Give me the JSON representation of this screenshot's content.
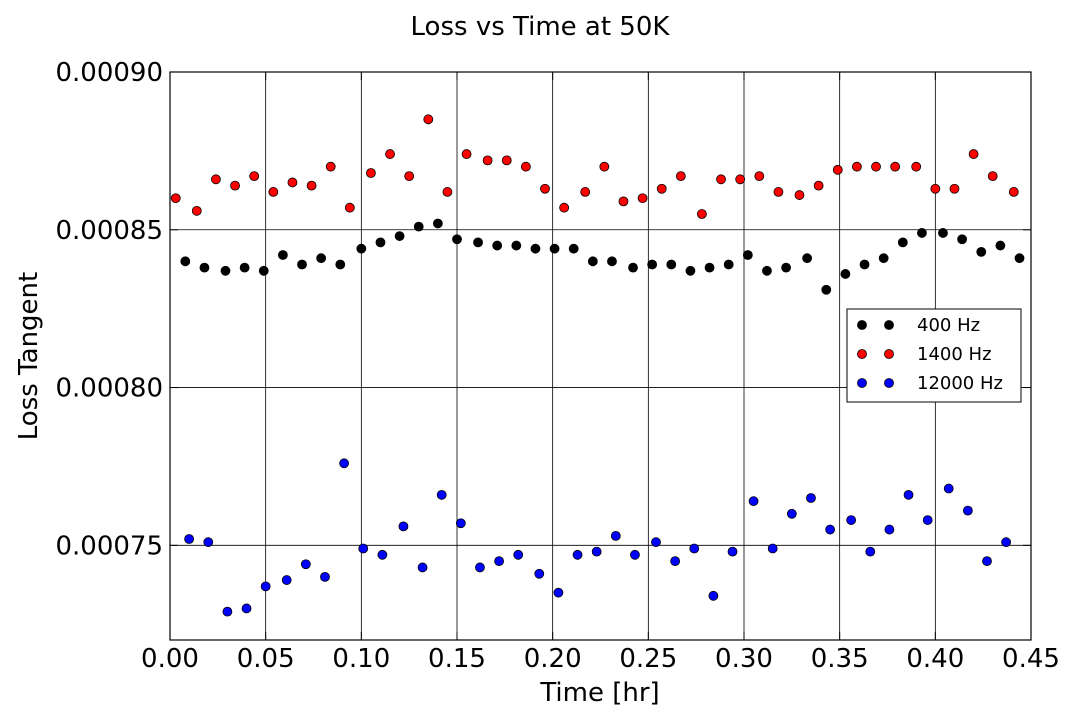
{
  "chart_data": {
    "type": "scatter",
    "title": "Loss vs Time at 50K",
    "xlabel": "Time [hr]",
    "ylabel": "Loss Tangent",
    "xlim": [
      0.0,
      0.45
    ],
    "ylim": [
      0.00072,
      0.0009
    ],
    "xticks": [
      0.0,
      0.05,
      0.1,
      0.15,
      0.2,
      0.25,
      0.3,
      0.35,
      0.4,
      0.45
    ],
    "xtick_labels": [
      "0.00",
      "0.05",
      "0.10",
      "0.15",
      "0.20",
      "0.25",
      "0.30",
      "0.35",
      "0.40",
      "0.45"
    ],
    "yticks": [
      0.00075,
      0.0008,
      0.00085,
      0.0009
    ],
    "ytick_labels": [
      "0.00075",
      "0.00080",
      "0.00085",
      "0.00090"
    ],
    "grid": true,
    "legend_position": "center-right",
    "series": [
      {
        "name": "400 Hz",
        "color": "#000000",
        "x": [
          0.008,
          0.018,
          0.029,
          0.039,
          0.049,
          0.059,
          0.069,
          0.079,
          0.089,
          0.1,
          0.11,
          0.12,
          0.13,
          0.14,
          0.15,
          0.161,
          0.171,
          0.181,
          0.191,
          0.201,
          0.211,
          0.221,
          0.231,
          0.242,
          0.252,
          0.262,
          0.272,
          0.282,
          0.292,
          0.302,
          0.312,
          0.322,
          0.333,
          0.343,
          0.353,
          0.363,
          0.373,
          0.383,
          0.393,
          0.404,
          0.414,
          0.424,
          0.434,
          0.444
        ],
        "y": [
          0.00084,
          0.000838,
          0.000837,
          0.000838,
          0.000837,
          0.000842,
          0.000839,
          0.000841,
          0.000839,
          0.000844,
          0.000846,
          0.000848,
          0.000851,
          0.000852,
          0.000847,
          0.000846,
          0.000845,
          0.000845,
          0.000844,
          0.000844,
          0.000844,
          0.00084,
          0.00084,
          0.000838,
          0.000839,
          0.000839,
          0.000837,
          0.000838,
          0.000839,
          0.000842,
          0.000837,
          0.000838,
          0.000841,
          0.000831,
          0.000836,
          0.000839,
          0.000841,
          0.000846,
          0.000849,
          0.000849,
          0.000847,
          0.000843,
          0.000845,
          0.000841
        ]
      },
      {
        "name": "1400 Hz",
        "color": "#ff0000",
        "x": [
          0.003,
          0.014,
          0.024,
          0.034,
          0.044,
          0.054,
          0.064,
          0.074,
          0.084,
          0.094,
          0.105,
          0.115,
          0.125,
          0.135,
          0.145,
          0.155,
          0.166,
          0.176,
          0.186,
          0.196,
          0.206,
          0.217,
          0.227,
          0.237,
          0.247,
          0.257,
          0.267,
          0.278,
          0.288,
          0.298,
          0.308,
          0.318,
          0.329,
          0.339,
          0.349,
          0.359,
          0.369,
          0.379,
          0.39,
          0.4,
          0.41,
          0.42,
          0.43,
          0.441
        ],
        "y": [
          0.00086,
          0.000856,
          0.000866,
          0.000864,
          0.000867,
          0.000862,
          0.000865,
          0.000864,
          0.00087,
          0.000857,
          0.000868,
          0.000874,
          0.000867,
          0.000885,
          0.000862,
          0.000874,
          0.000872,
          0.000872,
          0.00087,
          0.000863,
          0.000857,
          0.000862,
          0.00087,
          0.000859,
          0.00086,
          0.000863,
          0.000867,
          0.000855,
          0.000866,
          0.000866,
          0.000867,
          0.000862,
          0.000861,
          0.000864,
          0.000869,
          0.00087,
          0.00087,
          0.00087,
          0.00087,
          0.000863,
          0.000863,
          0.000874,
          0.000867,
          0.000862
        ]
      },
      {
        "name": "12000 Hz",
        "color": "#0000ff",
        "x": [
          0.01,
          0.02,
          0.03,
          0.04,
          0.05,
          0.061,
          0.071,
          0.081,
          0.091,
          0.101,
          0.111,
          0.122,
          0.132,
          0.142,
          0.152,
          0.162,
          0.172,
          0.182,
          0.193,
          0.203,
          0.213,
          0.223,
          0.233,
          0.243,
          0.254,
          0.264,
          0.274,
          0.284,
          0.294,
          0.305,
          0.315,
          0.325,
          0.335,
          0.345,
          0.356,
          0.366,
          0.376,
          0.386,
          0.396,
          0.407,
          0.417,
          0.427,
          0.437
        ],
        "y": [
          0.000752,
          0.000751,
          0.000729,
          0.00073,
          0.000737,
          0.000739,
          0.000744,
          0.00074,
          0.000776,
          0.000749,
          0.000747,
          0.000756,
          0.000743,
          0.000766,
          0.000757,
          0.000743,
          0.000745,
          0.000747,
          0.000741,
          0.000735,
          0.000747,
          0.000748,
          0.000753,
          0.000747,
          0.000751,
          0.000745,
          0.000749,
          0.000734,
          0.000748,
          0.000764,
          0.000749,
          0.00076,
          0.000765,
          0.000755,
          0.000758,
          0.000748,
          0.000755,
          0.000766,
          0.000758,
          0.000768,
          0.000761,
          0.000745,
          0.000751
        ]
      }
    ]
  }
}
